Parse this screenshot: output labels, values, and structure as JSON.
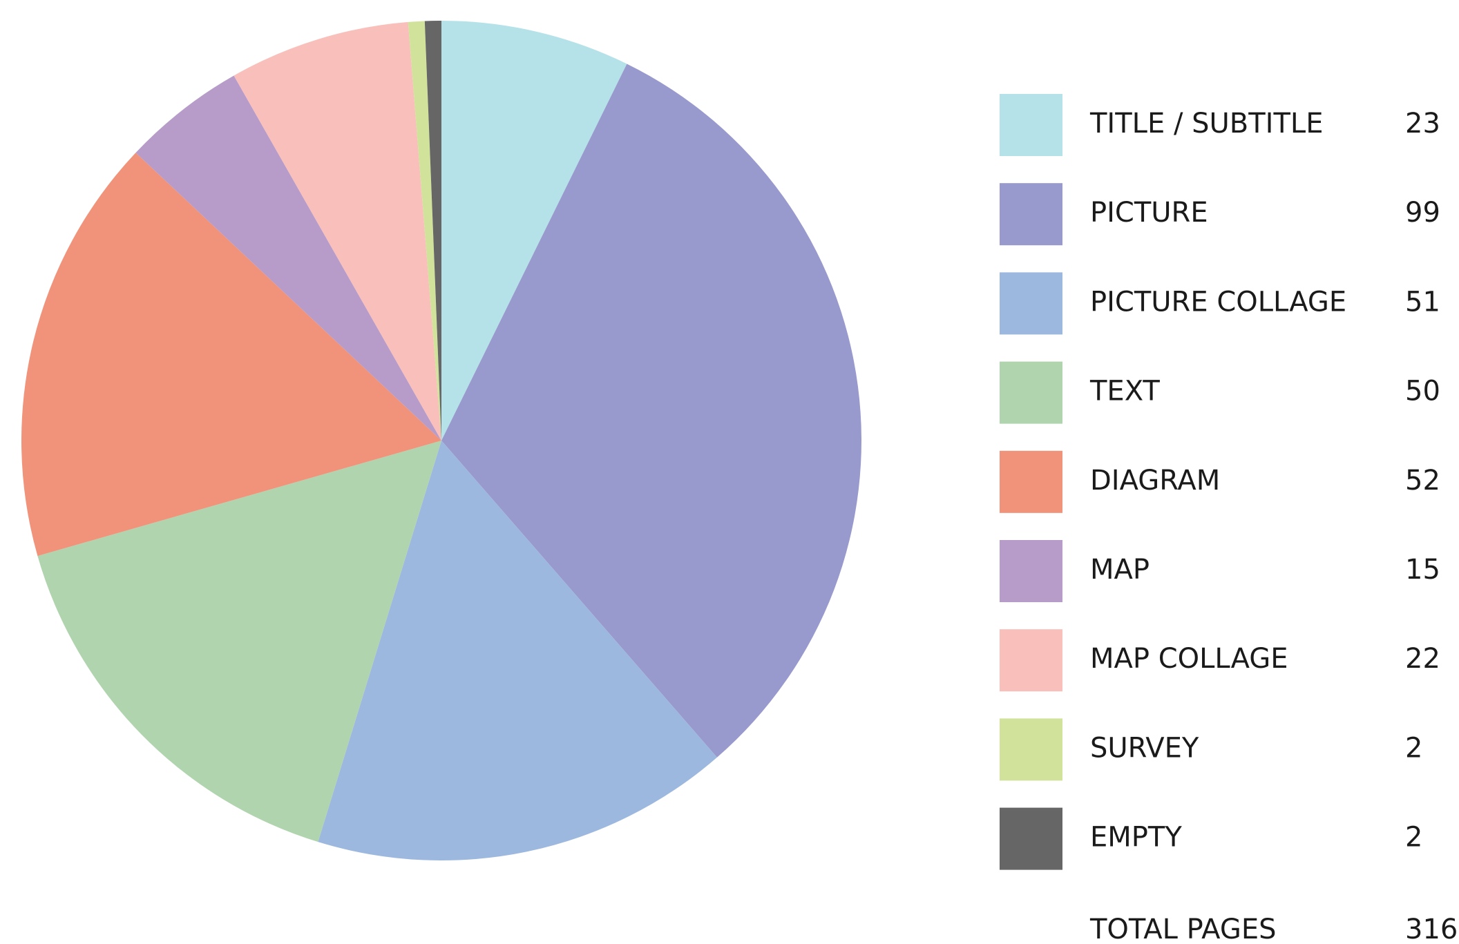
{
  "chart_data": {
    "type": "pie",
    "categories": [
      "TITLE / SUBTITLE",
      "PICTURE",
      "PICTURE COLLAGE",
      "TEXT",
      "DIAGRAM",
      "MAP",
      "MAP COLLAGE",
      "SURVEY",
      "EMPTY"
    ],
    "values": [
      23,
      99,
      51,
      50,
      52,
      15,
      22,
      2,
      2
    ],
    "colors": [
      "#b5e2e8",
      "#9899cc",
      "#9db8df",
      "#b0d4ae",
      "#f0937a",
      "#b79cc9",
      "#f9bfbb",
      "#d1e39b",
      "#666666"
    ],
    "legend": "right",
    "total": {
      "label": "TOTAL PAGES",
      "value": 316
    }
  }
}
